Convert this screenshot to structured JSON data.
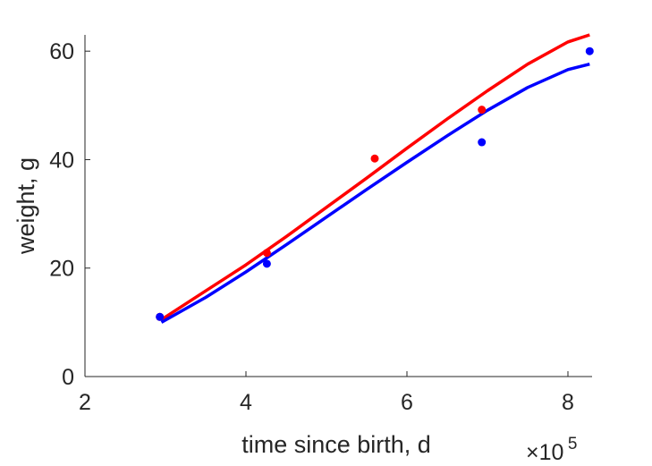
{
  "chart_data": {
    "type": "scatter",
    "xlabel": "time since birth, d",
    "ylabel": "weight, g",
    "x_exponent_label": "×10",
    "x_exponent_power": "5",
    "xlim": [
      2,
      8.3
    ],
    "ylim": [
      0,
      63
    ],
    "x_scale_note": "x values are in units of 10^5 days",
    "xticks": [
      2,
      4,
      6,
      8
    ],
    "xtick_labels": [
      "2",
      "4",
      "6",
      "8"
    ],
    "yticks": [
      0,
      20,
      40,
      60
    ],
    "ytick_labels": [
      "0",
      "20",
      "40",
      "60"
    ],
    "grid": false,
    "series": [
      {
        "color": "#ff0000",
        "points": {
          "x": [
            2.93,
            4.26,
            5.6,
            6.93
          ],
          "y": [
            11,
            22.8,
            40.2,
            49.2
          ]
        },
        "fit_curve": {
          "x": [
            2.95,
            3.5,
            4.0,
            4.5,
            5.0,
            5.5,
            6.0,
            6.5,
            7.0,
            7.5,
            8.0,
            8.27
          ],
          "y": [
            10.5,
            15.8,
            20.6,
            25.8,
            31.2,
            36.6,
            42.1,
            47.5,
            52.7,
            57.6,
            61.7,
            63
          ]
        }
      },
      {
        "color": "#0000ff",
        "points": {
          "x": [
            2.93,
            4.26,
            6.93,
            8.27
          ],
          "y": [
            11,
            20.8,
            43.2,
            60
          ]
        },
        "fit_curve": {
          "x": [
            2.95,
            3.5,
            4.0,
            4.5,
            5.0,
            5.5,
            6.0,
            6.5,
            7.0,
            7.5,
            8.0,
            8.27
          ],
          "y": [
            10,
            14.6,
            19.3,
            24.3,
            29.4,
            34.5,
            39.5,
            44.4,
            49.1,
            53.3,
            56.6,
            57.6
          ]
        }
      }
    ]
  }
}
